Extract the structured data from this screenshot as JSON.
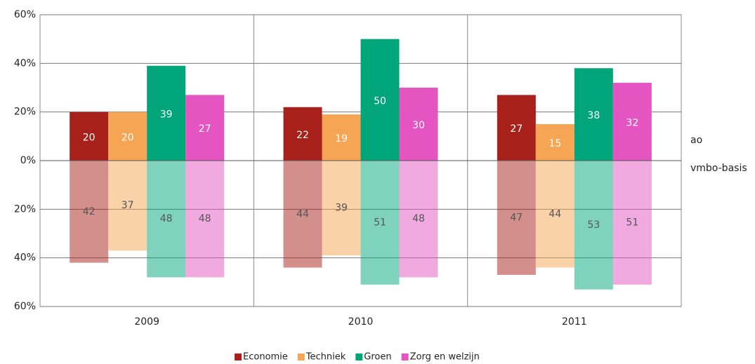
{
  "chart_data": {
    "type": "bar",
    "categories": [
      "2009",
      "2010",
      "2011"
    ],
    "upper_label": "ao",
    "lower_label": "vmbo-basis",
    "series": [
      {
        "name": "Economie",
        "color": "#a8201a",
        "values": [
          20,
          22,
          27
        ],
        "lower_values": [
          -42,
          -44,
          -47
        ],
        "lower_value_labels": [
          "42",
          "44",
          "47"
        ]
      },
      {
        "name": "Techniek",
        "color": "#f5a553",
        "values": [
          20,
          19,
          15
        ],
        "lower_values": [
          -37,
          -39,
          -44
        ],
        "lower_value_labels": [
          "37",
          "39",
          "44"
        ]
      },
      {
        "name": "Groen",
        "color": "#00a57a",
        "values": [
          39,
          50,
          38
        ],
        "lower_values": [
          -48,
          -51,
          -53
        ],
        "lower_value_labels": [
          "48",
          "51",
          "53"
        ]
      },
      {
        "name": "Zorg en welzijn",
        "color": "#e455c2",
        "values": [
          27,
          30,
          32
        ],
        "lower_values": [
          -48,
          -48,
          -51
        ],
        "lower_value_labels": [
          "48",
          "48",
          "51"
        ]
      }
    ],
    "ylim": [
      -60,
      60
    ],
    "yticks": [
      {
        "value": 60,
        "label": "60%"
      },
      {
        "value": 40,
        "label": "40%"
      },
      {
        "value": 20,
        "label": "20%"
      },
      {
        "value": 0,
        "label": "0%"
      },
      {
        "value": -20,
        "label": "20%"
      },
      {
        "value": -40,
        "label": "40%"
      },
      {
        "value": -60,
        "label": "60%"
      }
    ],
    "grid": true,
    "legend": "bottom"
  }
}
